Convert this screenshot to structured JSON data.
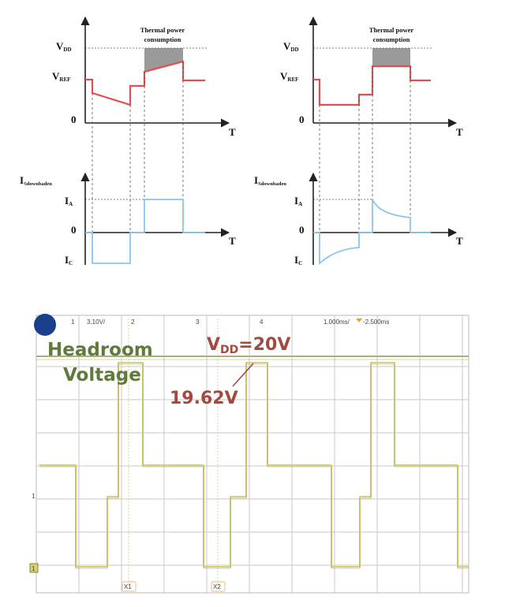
{
  "colors": {
    "rail_red": "#e05050",
    "current_blue": "#8cc4ee",
    "thermal_gray": "#9a9a9a",
    "scope_trace": "#d9d36a",
    "scope_grid": "#c8c8c8",
    "scope_rail": "#a9b07a",
    "headroom_green": "#5f7a3a",
    "vdd_brown": "#a04a40",
    "marker_blue": "#1a3f8a"
  },
  "left_diagram": {
    "thermal_label_line1": "Thermal power",
    "thermal_label_line2": "consumption",
    "v_labels": {
      "vdd": "V",
      "vdd_sub": "DD",
      "vref": "V",
      "vref_sub": "REF",
      "zero": "0"
    },
    "t_axis_label": "T",
    "i_labels": {
      "ishut": "I",
      "ishut_sub": "Sdownbaden",
      "ia": "I",
      "ia_sub": "A",
      "zero": "0",
      "ic": "I",
      "ic_sub": "C"
    },
    "t_axis_label_2": "T"
  },
  "right_diagram": {
    "thermal_label_line1": "Thermal power",
    "thermal_label_line2": "consumption",
    "v_labels": {
      "vdd": "V",
      "vdd_sub": "DD",
      "vref": "V",
      "vref_sub": "REF",
      "zero": "0"
    },
    "t_axis_label": "T",
    "i_labels": {
      "ishut": "I",
      "ishut_sub": "Sdownbaden",
      "ia": "I",
      "ia_sub": "A",
      "zero": "0",
      "ic": "I",
      "ic_sub": "C"
    },
    "t_axis_label_2": "T"
  },
  "scope": {
    "ch1_scale": "3.10V/",
    "ch2_label": "2",
    "ch3_label": "3",
    "ch4_label": "4",
    "timebase": "1.000ms/",
    "trigger_offset": "-2.500ms",
    "headroom_line1": "Headroom",
    "headroom_line2": "Voltage",
    "vdd_label": "V",
    "vdd_sub": "DD",
    "vdd_value": "=20V",
    "measured_value": "19.62V",
    "cursor_x1": "X1",
    "cursor_x2": "X2",
    "ground_marker": "1"
  }
}
